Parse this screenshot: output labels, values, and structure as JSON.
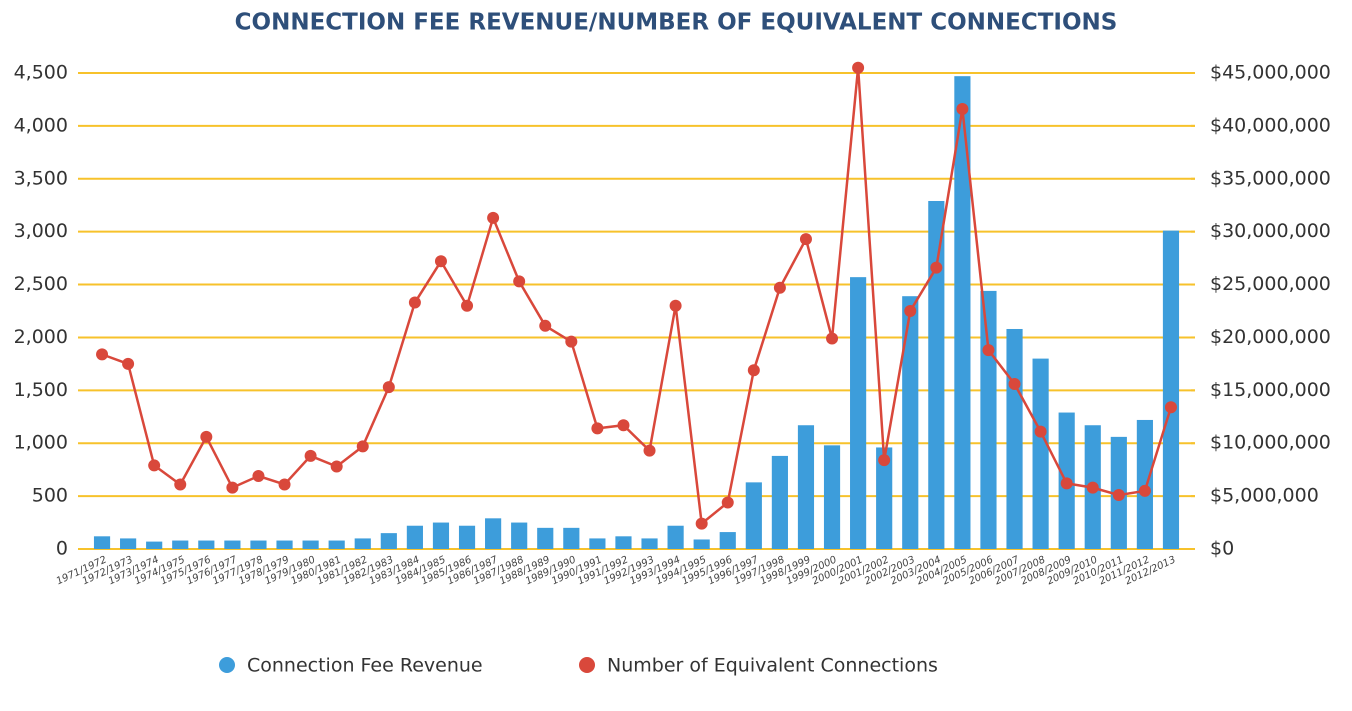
{
  "chart_data": {
    "type": "bar",
    "title": "CONNECTION FEE REVENUE/NUMBER OF EQUIVALENT CONNECTIONS",
    "categories": [
      "1971/1972",
      "1972/1973",
      "1973/1974",
      "1974/1975",
      "1975/1976",
      "1976/1977",
      "1977/1978",
      "1978/1979",
      "1979/1980",
      "1980/1981",
      "1981/1982",
      "1982/1983",
      "1983/1984",
      "1984/1985",
      "1985/1986",
      "1986/1987",
      "1987/1988",
      "1988/1989",
      "1989/1990",
      "1990/1991",
      "1991/1992",
      "1992/1993",
      "1993/1994",
      "1994/1995",
      "1995/1996",
      "1996/1997",
      "1997/1998",
      "1998/1999",
      "1999/2000",
      "2000/2001",
      "2001/2002",
      "2002/2003",
      "2003/2004",
      "2004/2005",
      "2005/2006",
      "2006/2007",
      "2007/2008",
      "2008/2009",
      "2009/2010",
      "2010/2011",
      "2011/2012",
      "2012/2013"
    ],
    "series": [
      {
        "name": "Connection Fee Revenue",
        "type": "bar",
        "axis": "y2",
        "color": "#3d9ddb",
        "values": [
          1200000,
          1000000,
          700000,
          800000,
          800000,
          800000,
          800000,
          800000,
          800000,
          800000,
          1000000,
          1500000,
          2200000,
          2500000,
          2200000,
          2900000,
          2500000,
          2000000,
          2000000,
          1000000,
          1200000,
          1000000,
          2200000,
          900000,
          1600000,
          6300000,
          8800000,
          11700000,
          9800000,
          25700000,
          9600000,
          23900000,
          32900000,
          44700000,
          24400000,
          20800000,
          18000000,
          12900000,
          11700000,
          10600000,
          12200000,
          30100000
        ]
      },
      {
        "name": "Number of Equivalent Connections",
        "type": "line",
        "axis": "y",
        "color": "#d9483b",
        "values": [
          1840,
          1750,
          790,
          610,
          1060,
          580,
          690,
          610,
          880,
          780,
          970,
          1530,
          2330,
          2720,
          2300,
          3130,
          2530,
          2110,
          1960,
          1140,
          1170,
          930,
          2300,
          240,
          440,
          1690,
          2470,
          2930,
          1990,
          4550,
          840,
          2250,
          2660,
          4160,
          1880,
          1560,
          1110,
          620,
          580,
          510,
          550,
          1340
        ]
      }
    ],
    "ylim": [
      0,
      4500
    ],
    "yticks": [
      0,
      500,
      {
        "value": 1000,
        "label": "1,000"
      },
      {
        "value": 1500,
        "label": "1,500"
      },
      {
        "value": 2000,
        "label": "2,000"
      },
      {
        "value": 2500,
        "label": "2,500"
      },
      {
        "value": 3000,
        "label": "3,000"
      },
      {
        "value": 3500,
        "label": "3,500"
      },
      {
        "value": 4000,
        "label": "4,000"
      },
      {
        "value": 4500,
        "label": "4,500"
      }
    ],
    "y2lim": [
      0,
      45000000
    ],
    "y2ticks": [
      {
        "value": 0,
        "label": "$0"
      },
      {
        "value": 5000000,
        "label": "$5,000,000"
      },
      {
        "value": 10000000,
        "label": "$10,000,000"
      },
      {
        "value": 15000000,
        "label": "$15,000,000"
      },
      {
        "value": 20000000,
        "label": "$20,000,000"
      },
      {
        "value": 25000000,
        "label": "$25,000,000"
      },
      {
        "value": 30000000,
        "label": "$30,000,000"
      },
      {
        "value": 35000000,
        "label": "$35,000,000"
      },
      {
        "value": 40000000,
        "label": "$40,000,000"
      },
      {
        "value": 45000000,
        "label": "$45,000,000"
      }
    ],
    "grid": true,
    "grid_color": "#f7c22b",
    "legend": "bottom"
  }
}
